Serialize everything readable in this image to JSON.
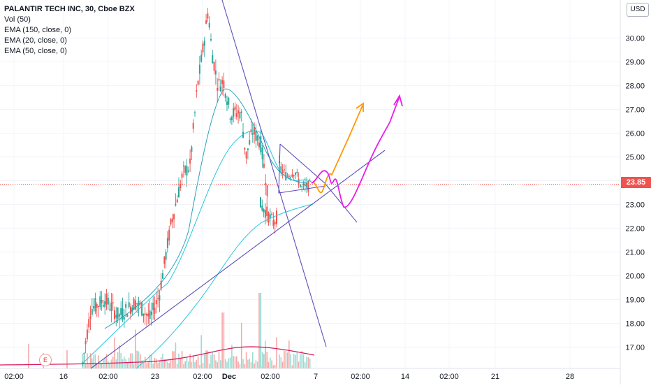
{
  "legend": {
    "title": "PALANTIR TECH INC, 30, Cboe BZX",
    "items": [
      "Vol (50)",
      "EMA (150, close, 0)",
      "EMA (20, close, 0)",
      "EMA (50, close, 0)"
    ]
  },
  "currency_label": "USD",
  "last_price_label": "23.85",
  "earnings_label": "E",
  "chart_data": {
    "type": "candlestick",
    "symbol": "PALANTIR TECH INC",
    "interval": "30",
    "exchange": "Cboe BZX",
    "y_ticks": [
      "30.00",
      "29.00",
      "28.00",
      "27.00",
      "26.00",
      "25.00",
      "24.00",
      "23.00",
      "22.00",
      "21.00",
      "20.00",
      "19.00",
      "18.00",
      "17.00"
    ],
    "y_tick_values": [
      30,
      29,
      28,
      27,
      26,
      25,
      24,
      23,
      22,
      21,
      20,
      19,
      18,
      17
    ],
    "ylim": [
      16.1,
      31.6
    ],
    "x_ticks": [
      "02:00",
      "16",
      "02:00",
      "23",
      "02:00",
      "Dec",
      "02:00",
      "7",
      "02:00",
      "14",
      "02:00",
      "21",
      "28"
    ],
    "last_price": 23.85,
    "colors": {
      "up": "#26a69a",
      "down": "#ef5350",
      "ema_line": "#26c6da",
      "trendline": "#5c4fb8",
      "projection_orange": "#ff9800",
      "projection_magenta": "#e91ee8",
      "volume_ma": "#d81b60"
    }
  }
}
